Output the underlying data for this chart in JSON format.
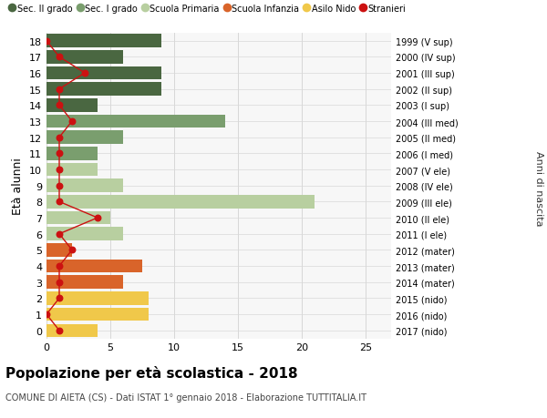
{
  "ages": [
    18,
    17,
    16,
    15,
    14,
    13,
    12,
    11,
    10,
    9,
    8,
    7,
    6,
    5,
    4,
    3,
    2,
    1,
    0
  ],
  "right_labels": [
    "1999 (V sup)",
    "2000 (IV sup)",
    "2001 (III sup)",
    "2002 (II sup)",
    "2003 (I sup)",
    "2004 (III med)",
    "2005 (II med)",
    "2006 (I med)",
    "2007 (V ele)",
    "2008 (IV ele)",
    "2009 (III ele)",
    "2010 (II ele)",
    "2011 (I ele)",
    "2012 (mater)",
    "2013 (mater)",
    "2014 (mater)",
    "2015 (nido)",
    "2016 (nido)",
    "2017 (nido)"
  ],
  "bar_values": [
    9,
    6,
    9,
    9,
    4,
    14,
    6,
    4,
    4,
    6,
    21,
    5,
    6,
    2,
    7.5,
    6,
    8,
    8,
    4
  ],
  "bar_colors": [
    "#4a6741",
    "#4a6741",
    "#4a6741",
    "#4a6741",
    "#4a6741",
    "#7a9e6e",
    "#7a9e6e",
    "#7a9e6e",
    "#b8cfa0",
    "#b8cfa0",
    "#b8cfa0",
    "#b8cfa0",
    "#b8cfa0",
    "#d9642a",
    "#d9642a",
    "#d9642a",
    "#f0c84a",
    "#f0c84a",
    "#f0c84a"
  ],
  "stranieri_x": [
    0,
    1,
    3,
    1,
    1,
    2,
    1,
    1,
    1,
    1,
    1,
    4,
    1,
    2,
    1,
    1,
    1,
    0,
    1
  ],
  "legend_labels": [
    "Sec. II grado",
    "Sec. I grado",
    "Scuola Primaria",
    "Scuola Infanzia",
    "Asilo Nido",
    "Stranieri"
  ],
  "legend_colors": [
    "#4a6741",
    "#7a9e6e",
    "#b8cfa0",
    "#d9642a",
    "#f0c84a",
    "#cc1111"
  ],
  "title": "Popolazione per età scolastica - 2018",
  "subtitle": "COMUNE DI AIETA (CS) - Dati ISTAT 1° gennaio 2018 - Elaborazione TUTTITALIA.IT",
  "ylabel": "Età alunni",
  "right_ylabel": "Anni di nascita",
  "xlim_max": 27,
  "bar_height": 0.82,
  "stranieri_color": "#cc1111",
  "grid_color": "#d8d8d8",
  "bg_color": "#f7f7f7"
}
